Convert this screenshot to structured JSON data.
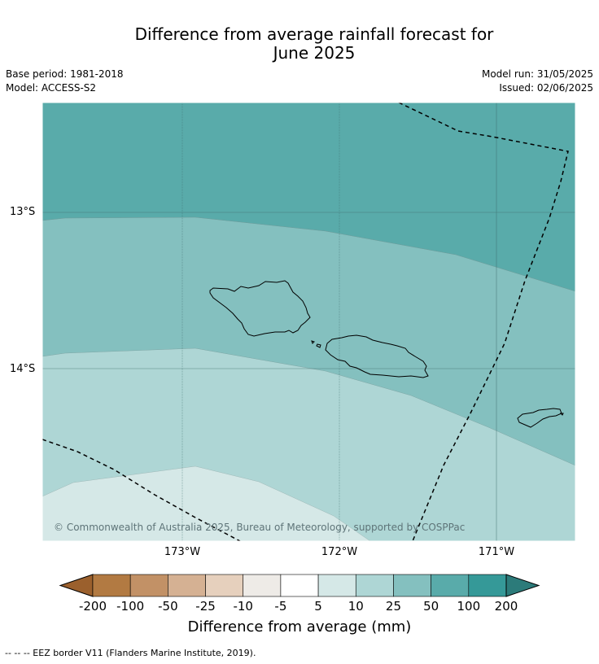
{
  "title_line1": "Difference from average rainfall forecast for",
  "title_line2": "June 2025",
  "base_period": "Base period: 1981-2018",
  "model": "Model: ACCESS-S2",
  "model_run": "Model run: 31/05/2025",
  "issued": "Issued: 02/06/2025",
  "map": {
    "lat_labels": [
      "13°S",
      "14°S"
    ],
    "lon_labels": [
      "173°W",
      "172°W",
      "171°W"
    ],
    "copyright": "© Commonwealth of Australia 2025, Bureau of Meteorology, supported by COSPPac"
  },
  "colorbar": {
    "ticks": [
      "-200",
      "-100",
      "-50",
      "-25",
      "-10",
      "-5",
      "5",
      "10",
      "25",
      "50",
      "100",
      "200"
    ],
    "colors": [
      "#9b602d",
      "#b27a42",
      "#c29166",
      "#d5b193",
      "#e6d0bd",
      "#eeebe7",
      "#ffffff",
      "#d5e8e7",
      "#aed6d5",
      "#84c0bf",
      "#59abaa",
      "#359998",
      "#2c7b7a"
    ],
    "label": "Difference from average (mm)"
  },
  "footnote": "--  --  -- EEZ border V11 (Flanders Marine Institute, 2019)."
}
